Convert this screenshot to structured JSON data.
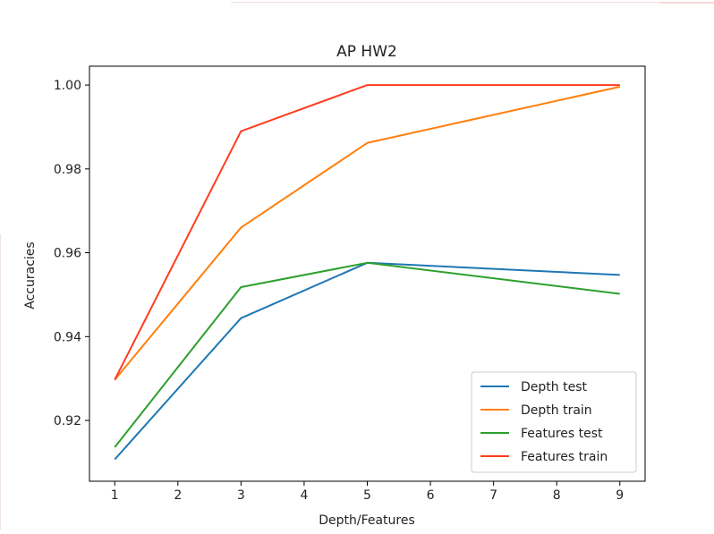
{
  "chart_data": {
    "type": "line",
    "title": "AP HW2",
    "xlabel": "Depth/Features",
    "ylabel": "Accuracies",
    "xlim": [
      0.6,
      9.4
    ],
    "ylim": [
      0.9055,
      1.0045
    ],
    "x_ticks": [
      "1",
      "2",
      "3",
      "4",
      "5",
      "6",
      "7",
      "8",
      "9"
    ],
    "y_ticks": [
      "0.92",
      "0.94",
      "0.96",
      "0.98",
      "1.00"
    ],
    "x": [
      1,
      3,
      5,
      9
    ],
    "grid": false,
    "legend_position": "lower right",
    "series": [
      {
        "name": "Depth test",
        "color": "#1f77b4",
        "values": [
          0.9107,
          0.9444,
          0.9576,
          0.9547
        ]
      },
      {
        "name": "Depth train",
        "color": "#ff7f0e",
        "values": [
          0.9297,
          0.966,
          0.9862,
          0.9996
        ]
      },
      {
        "name": "Features test",
        "color": "#2ca02c",
        "values": [
          0.9136,
          0.9518,
          0.9576,
          0.9502
        ]
      },
      {
        "name": "Features train",
        "color": "#ff3c1e",
        "values": [
          0.9297,
          0.989,
          1.0,
          1.0
        ]
      }
    ]
  }
}
